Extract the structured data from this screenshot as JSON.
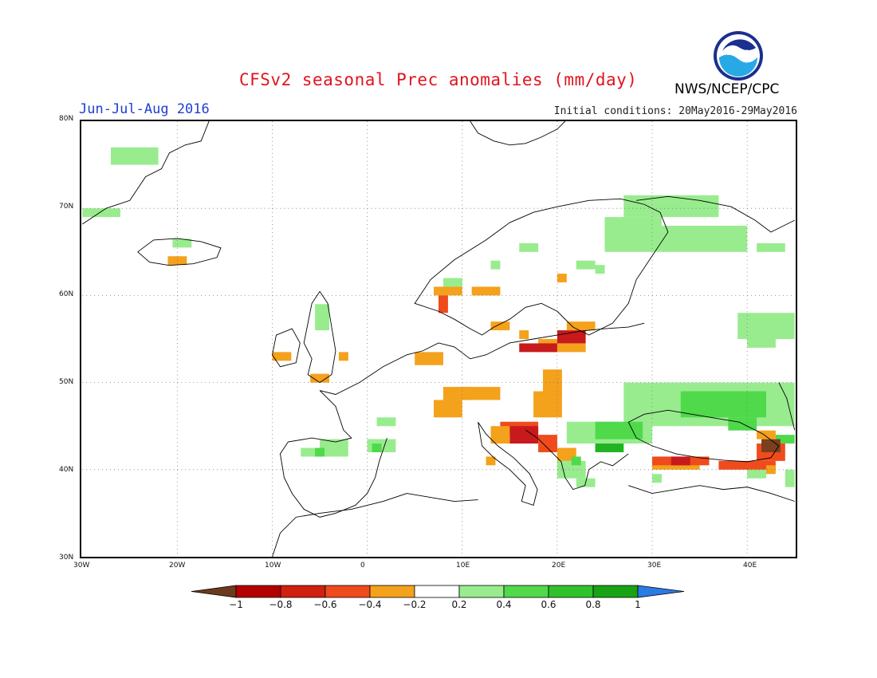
{
  "header": {
    "title": "CFSv2 seasonal Prec anomalies (mm/day)",
    "period": "Jun-Jul-Aug 2016",
    "initial_conditions": "Initial conditions: 20May2016-29May2016",
    "agency": "NWS/NCEP/CPC",
    "logo_text": "NOAA"
  },
  "map": {
    "lon_range": [
      -30,
      45
    ],
    "lat_range": [
      30,
      80
    ],
    "lon_ticks": [
      {
        "value": -30,
        "label": "30W"
      },
      {
        "value": -20,
        "label": "20W"
      },
      {
        "value": -10,
        "label": "10W"
      },
      {
        "value": 0,
        "label": "0"
      },
      {
        "value": 10,
        "label": "10E"
      },
      {
        "value": 20,
        "label": "20E"
      },
      {
        "value": 30,
        "label": "30E"
      },
      {
        "value": 40,
        "label": "40E"
      }
    ],
    "lat_ticks": [
      {
        "value": 30,
        "label": "30N"
      },
      {
        "value": 40,
        "label": "40N"
      },
      {
        "value": 50,
        "label": "50N"
      },
      {
        "value": 60,
        "label": "60N"
      },
      {
        "value": 70,
        "label": "70N"
      },
      {
        "value": 80,
        "label": "80N"
      }
    ],
    "grid": "dotted",
    "anomaly_cells": [
      {
        "lon": -27,
        "lat": 75,
        "w": 5,
        "h": 2,
        "cat": "g1"
      },
      {
        "lon": -30,
        "lat": 69,
        "w": 4,
        "h": 1,
        "cat": "g1"
      },
      {
        "lon": -20.5,
        "lat": 65.5,
        "w": 2,
        "h": 1,
        "cat": "g1"
      },
      {
        "lon": -21,
        "lat": 63.5,
        "w": 2,
        "h": 1,
        "cat": "o"
      },
      {
        "lon": -5.5,
        "lat": 56,
        "w": 1.5,
        "h": 3,
        "cat": "g1"
      },
      {
        "lon": -10,
        "lat": 52.5,
        "w": 2,
        "h": 1,
        "cat": "o"
      },
      {
        "lon": -6,
        "lat": 50,
        "w": 2,
        "h": 1,
        "cat": "o"
      },
      {
        "lon": -3,
        "lat": 52.5,
        "w": 1,
        "h": 1,
        "cat": "o"
      },
      {
        "lon": 5,
        "lat": 52,
        "w": 3,
        "h": 1.5,
        "cat": "o"
      },
      {
        "lon": 8,
        "lat": 48,
        "w": 3,
        "h": 1.5,
        "cat": "o"
      },
      {
        "lon": 10,
        "lat": 48,
        "w": 4,
        "h": 1.5,
        "cat": "o"
      },
      {
        "lon": 7,
        "lat": 46,
        "w": 3,
        "h": 2,
        "cat": "o"
      },
      {
        "lon": 7,
        "lat": 60,
        "w": 3,
        "h": 1,
        "cat": "o"
      },
      {
        "lon": 7.5,
        "lat": 58,
        "w": 1,
        "h": 2,
        "cat": "r1"
      },
      {
        "lon": 11,
        "lat": 60,
        "w": 3,
        "h": 1,
        "cat": "o"
      },
      {
        "lon": 13,
        "lat": 56,
        "w": 2,
        "h": 1,
        "cat": "o"
      },
      {
        "lon": 16,
        "lat": 55,
        "w": 1,
        "h": 1,
        "cat": "o"
      },
      {
        "lon": 18,
        "lat": 53.5,
        "w": 2,
        "h": 1.5,
        "cat": "o"
      },
      {
        "lon": 16,
        "lat": 53.5,
        "w": 4,
        "h": 1,
        "cat": "r2"
      },
      {
        "lon": 20,
        "lat": 54.5,
        "w": 3,
        "h": 1.5,
        "cat": "r2"
      },
      {
        "lon": 21,
        "lat": 56,
        "w": 3,
        "h": 1,
        "cat": "o"
      },
      {
        "lon": 20,
        "lat": 53.5,
        "w": 3,
        "h": 1,
        "cat": "o"
      },
      {
        "lon": 20,
        "lat": 61.5,
        "w": 1,
        "h": 1,
        "cat": "o"
      },
      {
        "lon": 18.5,
        "lat": 48.5,
        "w": 2,
        "h": 3,
        "cat": "o"
      },
      {
        "lon": 17.5,
        "lat": 46,
        "w": 3,
        "h": 3,
        "cat": "o"
      },
      {
        "lon": 14,
        "lat": 44,
        "w": 4,
        "h": 1.5,
        "cat": "r1"
      },
      {
        "lon": 15,
        "lat": 43,
        "w": 3,
        "h": 2,
        "cat": "r2"
      },
      {
        "lon": 13,
        "lat": 43,
        "w": 2,
        "h": 2,
        "cat": "o"
      },
      {
        "lon": 18,
        "lat": 42,
        "w": 2,
        "h": 2,
        "cat": "r1"
      },
      {
        "lon": 20,
        "lat": 41,
        "w": 2,
        "h": 1.5,
        "cat": "o"
      },
      {
        "lon": 12.5,
        "lat": 40.5,
        "w": 1,
        "h": 1,
        "cat": "o"
      },
      {
        "lon": 0,
        "lat": 42.5,
        "w": 1,
        "h": 1,
        "cat": "o"
      },
      {
        "lon": -7,
        "lat": 41.5,
        "w": 5,
        "h": 1,
        "cat": "g1"
      },
      {
        "lon": -5,
        "lat": 42.5,
        "w": 3,
        "h": 1,
        "cat": "g1"
      },
      {
        "lon": -5.5,
        "lat": 41.5,
        "w": 1,
        "h": 1,
        "cat": "g2"
      },
      {
        "lon": 0,
        "lat": 42,
        "w": 3,
        "h": 1.5,
        "cat": "g1"
      },
      {
        "lon": 0.5,
        "lat": 42,
        "w": 1,
        "h": 1,
        "cat": "g2"
      },
      {
        "lon": 1,
        "lat": 45,
        "w": 2,
        "h": 1,
        "cat": "g1"
      },
      {
        "lon": 22,
        "lat": 63,
        "w": 2,
        "h": 1,
        "cat": "g1"
      },
      {
        "lon": 8,
        "lat": 61,
        "w": 2,
        "h": 1,
        "cat": "g1"
      },
      {
        "lon": 13,
        "lat": 63,
        "w": 1,
        "h": 1,
        "cat": "g1"
      },
      {
        "lon": 16,
        "lat": 65,
        "w": 2,
        "h": 1,
        "cat": "g1"
      },
      {
        "lon": 24,
        "lat": 62.5,
        "w": 1,
        "h": 1,
        "cat": "g1"
      },
      {
        "lon": 27,
        "lat": 69,
        "w": 10,
        "h": 2.5,
        "cat": "g1"
      },
      {
        "lon": 25,
        "lat": 65,
        "w": 6,
        "h": 4,
        "cat": "g1"
      },
      {
        "lon": 31,
        "lat": 65,
        "w": 9,
        "h": 3,
        "cat": "g1"
      },
      {
        "lon": 41,
        "lat": 65,
        "w": 3,
        "h": 1,
        "cat": "g1"
      },
      {
        "lon": 39,
        "lat": 55,
        "w": 6,
        "h": 3,
        "cat": "g1"
      },
      {
        "lon": 40,
        "lat": 54,
        "w": 3,
        "h": 1,
        "cat": "g1"
      },
      {
        "lon": 27,
        "lat": 45,
        "w": 18,
        "h": 5,
        "cat": "g1"
      },
      {
        "lon": 21,
        "lat": 43,
        "w": 9,
        "h": 2.5,
        "cat": "g1"
      },
      {
        "lon": 24,
        "lat": 43.5,
        "w": 5,
        "h": 2,
        "cat": "g2"
      },
      {
        "lon": 33,
        "lat": 46,
        "w": 9,
        "h": 3,
        "cat": "g2"
      },
      {
        "lon": 38,
        "lat": 44.5,
        "w": 3,
        "h": 1.5,
        "cat": "g2"
      },
      {
        "lon": 24,
        "lat": 42,
        "w": 3,
        "h": 1,
        "cat": "g3"
      },
      {
        "lon": 20,
        "lat": 39,
        "w": 3,
        "h": 2,
        "cat": "g1"
      },
      {
        "lon": 21.5,
        "lat": 40.5,
        "w": 1,
        "h": 1,
        "cat": "g2"
      },
      {
        "lon": 22,
        "lat": 38,
        "w": 2,
        "h": 1,
        "cat": "g1"
      },
      {
        "lon": 30,
        "lat": 38.5,
        "w": 1,
        "h": 1,
        "cat": "g1"
      },
      {
        "lon": 43,
        "lat": 43,
        "w": 2,
        "h": 1,
        "cat": "g2"
      },
      {
        "lon": 44,
        "lat": 38,
        "w": 1,
        "h": 2,
        "cat": "g1"
      },
      {
        "lon": 40,
        "lat": 39,
        "w": 2,
        "h": 1,
        "cat": "g1"
      },
      {
        "lon": 30,
        "lat": 40,
        "w": 5,
        "h": 1,
        "cat": "o"
      },
      {
        "lon": 30,
        "lat": 40.5,
        "w": 6,
        "h": 1,
        "cat": "r1"
      },
      {
        "lon": 32,
        "lat": 40.5,
        "w": 2,
        "h": 1,
        "cat": "r2"
      },
      {
        "lon": 37,
        "lat": 40,
        "w": 6,
        "h": 1,
        "cat": "r1"
      },
      {
        "lon": 41,
        "lat": 41,
        "w": 3,
        "h": 2,
        "cat": "r1"
      },
      {
        "lon": 41.5,
        "lat": 42,
        "w": 2,
        "h": 1.5,
        "cat": "r3"
      },
      {
        "lon": 41,
        "lat": 43.5,
        "w": 2,
        "h": 1,
        "cat": "o"
      },
      {
        "lon": 42,
        "lat": 39.5,
        "w": 1,
        "h": 1,
        "cat": "o"
      }
    ]
  },
  "colorbar": {
    "categories": [
      {
        "cat": "r3",
        "color": "#7b3f1e"
      },
      {
        "cat": "r2",
        "color": "#c8191c"
      },
      {
        "cat": "r1",
        "color": "#f04b1c"
      },
      {
        "cat": "o",
        "color": "#f4a11c"
      },
      {
        "cat": "w",
        "color": "#ffffff"
      },
      {
        "cat": "g1",
        "color": "#98ec8e"
      },
      {
        "cat": "g2",
        "color": "#4fd94b"
      },
      {
        "cat": "g3",
        "color": "#22b322"
      },
      {
        "cat": "b",
        "color": "#2277e8"
      }
    ],
    "swatches": [
      "#b30000",
      "#d0200f",
      "#f04b1c",
      "#f4a11c",
      "#ffffff",
      "#98ec8e",
      "#4fd94b",
      "#2fc22c",
      "#17a314"
    ],
    "low_arrow_color": "#6e3a1d",
    "high_arrow_color": "#2a7be4",
    "labels": [
      "-1",
      "-0.8",
      "-0.6",
      "-0.4",
      "-0.2",
      "0.2",
      "0.4",
      "0.6",
      "0.8",
      "1"
    ]
  }
}
